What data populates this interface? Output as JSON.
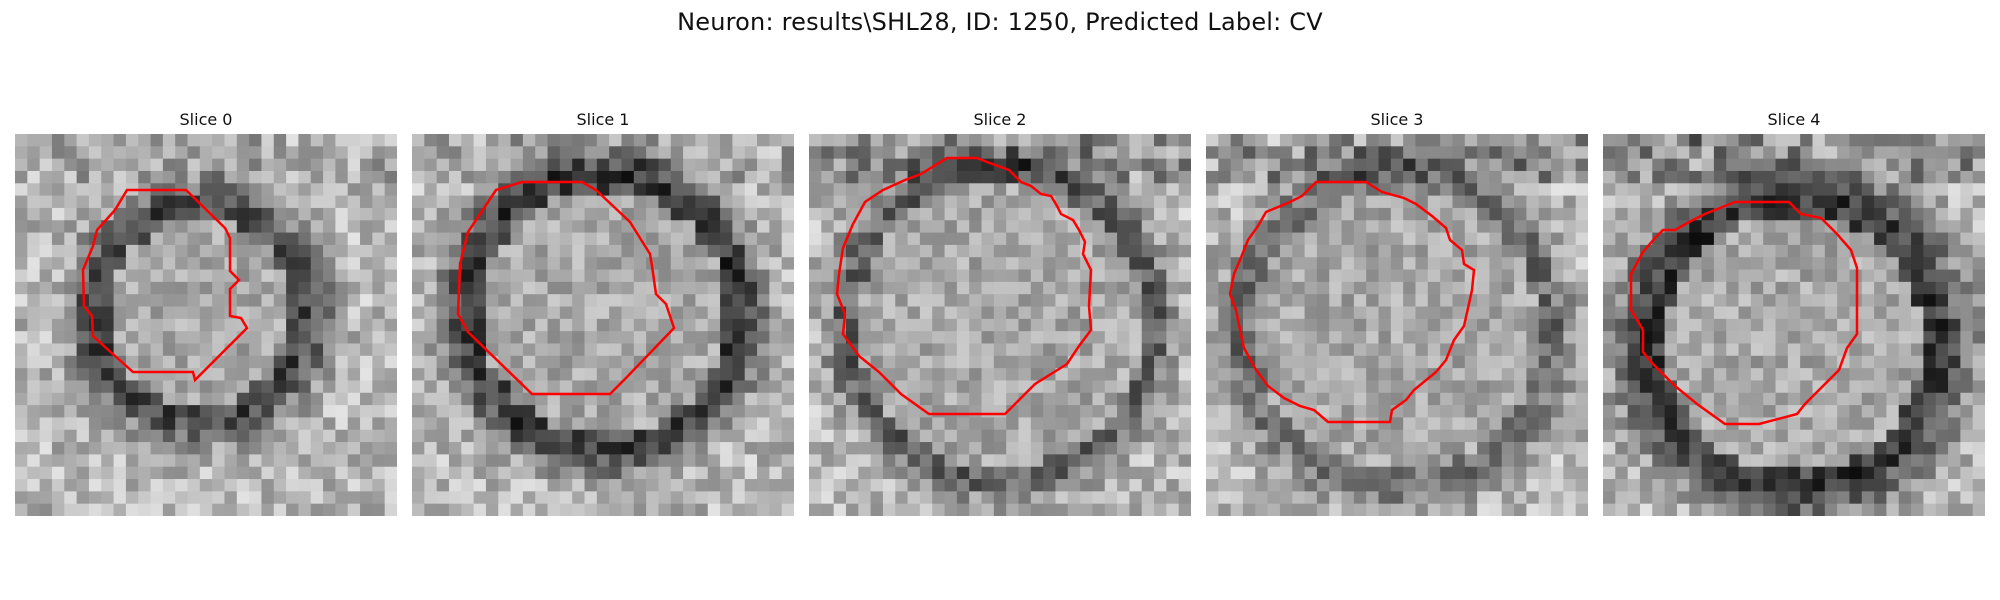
{
  "title": "Neuron: results\\SHL28, ID: 1250, Predicted Label: CV",
  "outline_color": "#ff0000",
  "slices": [
    {
      "label": "Slice 0"
    },
    {
      "label": "Slice 1"
    },
    {
      "label": "Slice 2"
    },
    {
      "label": "Slice 3"
    },
    {
      "label": "Slice 4"
    }
  ]
}
